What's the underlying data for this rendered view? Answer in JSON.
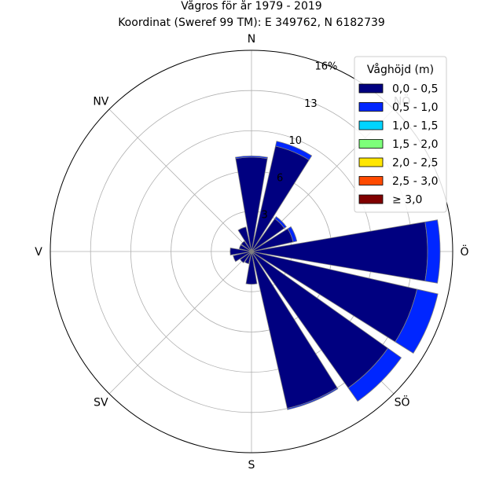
{
  "chart_data": {
    "type": "windrose",
    "title": "Vågros för år 1979 - 2019",
    "subtitle": "Koordinat (Sweref 99 TM): E 349762, N 6182739",
    "directions": [
      "N",
      "NNÖ",
      "NÖ",
      "ÖNÖ",
      "Ö",
      "ÖSÖ",
      "SÖ",
      "SSÖ",
      "S",
      "SSV",
      "SV",
      "VSV",
      "V",
      "VNV",
      "NV",
      "NNV"
    ],
    "direction_labels": [
      "N",
      "NÖ",
      "Ö",
      "SÖ",
      "S",
      "SV",
      "V",
      "NV"
    ],
    "radial_ticks": [
      "3",
      "6",
      "10",
      "13",
      "16%"
    ],
    "rmax": 16,
    "legend_title": "Våghöjd (m)",
    "bins": [
      {
        "label": "0,0 - 0,5",
        "color": "#000080"
      },
      {
        "label": "0,5 - 1,0",
        "color": "#0026ff"
      },
      {
        "label": "1,0 - 1,5",
        "color": "#00d4ff"
      },
      {
        "label": "1,5 - 2,0",
        "color": "#7dff7a"
      },
      {
        "label": "2,0 - 2,5",
        "color": "#ffe600"
      },
      {
        "label": "2,5 - 3,0",
        "color": "#ff4a00"
      },
      {
        "label": "≥ 3,0",
        "color": "#800000"
      }
    ],
    "frequencies": [
      [
        7.5,
        0.1,
        0,
        0,
        0,
        0,
        0
      ],
      [
        8.6,
        0.4,
        0,
        0,
        0,
        0,
        0
      ],
      [
        3.2,
        0.2,
        0,
        0,
        0,
        0,
        0
      ],
      [
        3.4,
        0.3,
        0,
        0,
        0,
        0,
        0
      ],
      [
        14.0,
        1.0,
        0,
        0,
        0,
        0,
        0
      ],
      [
        13.5,
        1.7,
        0,
        0,
        0,
        0,
        0
      ],
      [
        13.3,
        1.3,
        0,
        0,
        0,
        0,
        0
      ],
      [
        12.8,
        0.1,
        0,
        0,
        0,
        0,
        0
      ],
      [
        2.6,
        0,
        0,
        0,
        0,
        0,
        0
      ],
      [
        1.0,
        0,
        0,
        0,
        0,
        0,
        0
      ],
      [
        1.1,
        0,
        0,
        0,
        0,
        0,
        0
      ],
      [
        1.5,
        0,
        0,
        0,
        0,
        0,
        0
      ],
      [
        1.7,
        0,
        0,
        0,
        0,
        0,
        0
      ],
      [
        1.0,
        0,
        0,
        0,
        0,
        0,
        0
      ],
      [
        1.0,
        0,
        0,
        0,
        0,
        0,
        0
      ],
      [
        2.0,
        0,
        0,
        0,
        0,
        0,
        0
      ]
    ],
    "grid": true,
    "legend_position": "top-right"
  }
}
